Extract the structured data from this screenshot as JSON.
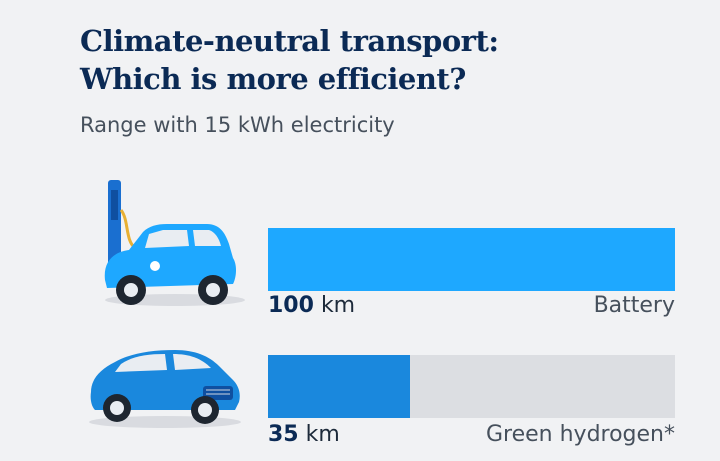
{
  "header": {
    "title_line1": "Climate-neutral transport:",
    "title_line2": "Which is more efficient?",
    "subtitle": "Range with 15 kWh electricity"
  },
  "colors": {
    "battery": "#1ea8ff",
    "hydrogen": "#1a88dd",
    "track": "#dcdee2",
    "title": "#0b2a55"
  },
  "icons": [
    "charging-station-car-icon",
    "suv-car-icon"
  ],
  "chart_data": {
    "type": "bar",
    "orientation": "horizontal",
    "title": "Climate-neutral transport: Which is more efficient?",
    "subtitle": "Range with 15 kWh electricity",
    "categories": [
      "Battery",
      "Green hydrogen*"
    ],
    "values": [
      100,
      35
    ],
    "unit": "km",
    "xlim": [
      0,
      100
    ],
    "grid": false,
    "bars": [
      {
        "category": "Battery",
        "value": 100,
        "value_text": "100",
        "unit": "km"
      },
      {
        "category": "Green hydrogen*",
        "value": 35,
        "value_text": "35",
        "unit": "km"
      }
    ]
  }
}
